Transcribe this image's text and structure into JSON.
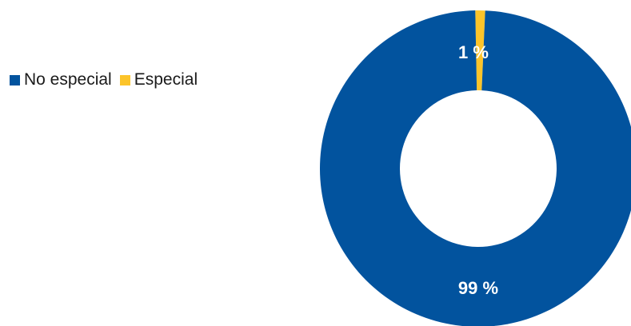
{
  "chart_data": {
    "type": "pie",
    "donut": true,
    "categories": [
      "No especial",
      "Especial"
    ],
    "values": [
      99,
      1
    ],
    "data_labels": [
      "99 %",
      "1 %"
    ],
    "colors": [
      "#02539E",
      "#FCC42A"
    ],
    "legend_position": "top-left",
    "title": ""
  }
}
